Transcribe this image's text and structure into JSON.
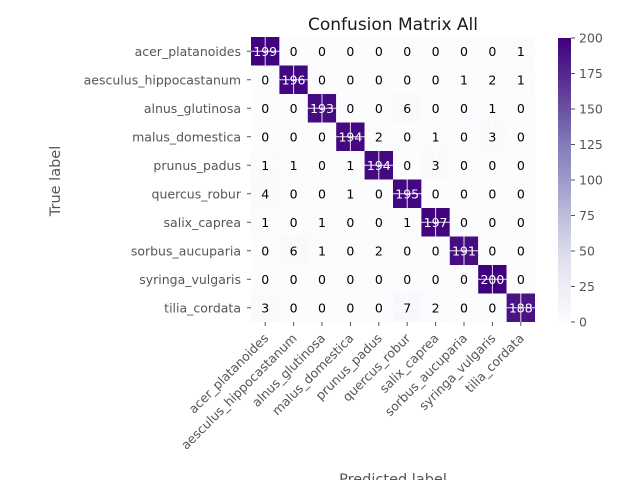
{
  "chart_data": {
    "type": "heatmap",
    "title": "Confusion Matrix All",
    "xlabel": "Predicted label",
    "ylabel": "True label",
    "labels": [
      "acer_platanoides",
      "aesculus_hippocastanum",
      "alnus_glutinosa",
      "malus_domestica",
      "prunus_padus",
      "quercus_robur",
      "salix_caprea",
      "sorbus_aucuparia",
      "syringa_vulgaris",
      "tilia_cordata"
    ],
    "matrix": [
      [
        199,
        0,
        0,
        0,
        0,
        0,
        0,
        0,
        0,
        1
      ],
      [
        0,
        196,
        0,
        0,
        0,
        0,
        0,
        1,
        2,
        1
      ],
      [
        0,
        0,
        193,
        0,
        0,
        6,
        0,
        0,
        1,
        0
      ],
      [
        0,
        0,
        0,
        194,
        2,
        0,
        1,
        0,
        3,
        0
      ],
      [
        1,
        1,
        0,
        1,
        194,
        0,
        3,
        0,
        0,
        0
      ],
      [
        4,
        0,
        0,
        1,
        0,
        195,
        0,
        0,
        0,
        0
      ],
      [
        1,
        0,
        1,
        0,
        0,
        1,
        197,
        0,
        0,
        0
      ],
      [
        0,
        6,
        1,
        0,
        2,
        0,
        0,
        191,
        0,
        0
      ],
      [
        0,
        0,
        0,
        0,
        0,
        0,
        0,
        0,
        200,
        0
      ],
      [
        3,
        0,
        0,
        0,
        0,
        7,
        2,
        0,
        0,
        188
      ]
    ],
    "colormap": "Purples",
    "vmin": 0,
    "vmax": 200,
    "colorbar_ticks": [
      0,
      25,
      50,
      75,
      100,
      125,
      150,
      175,
      200
    ],
    "grid": true
  }
}
